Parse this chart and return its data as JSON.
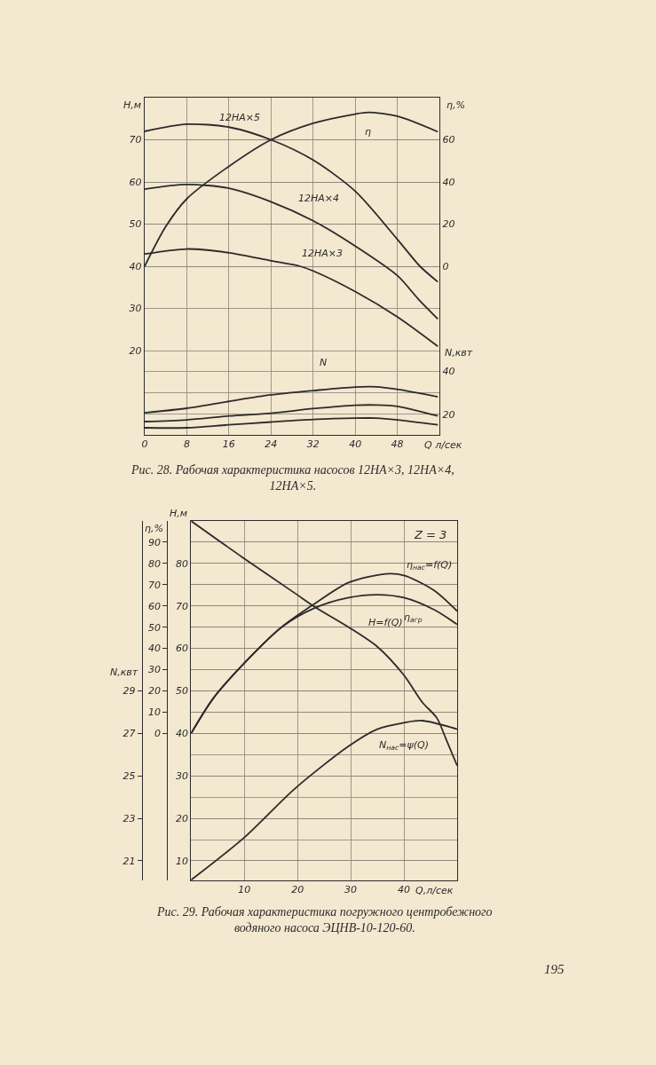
{
  "chart_data": [
    {
      "type": "line",
      "title": "Рис. 28. Рабочая характеристика насосов 12НА×3, 12НА×4, 12НА×5.",
      "xlabel": "Q л/сек",
      "ylabel": "H,м",
      "y2label": "η,%",
      "y3label": "N,квт",
      "xlim": [
        0,
        56
      ],
      "xticks": [
        0,
        8,
        16,
        24,
        32,
        40,
        48
      ],
      "ylim": [
        0,
        80
      ],
      "yticks": [
        20,
        30,
        40,
        50,
        60,
        70
      ],
      "y2lim": [
        -80,
        80
      ],
      "y2ticks": [
        0,
        20,
        40,
        60
      ],
      "y3lim": [
        10.4,
        167.4
      ],
      "y3ticks": [
        20,
        {
          "value": 30,
          "label": null
        },
        40
      ],
      "grid": true,
      "series": [
        {
          "name": "12НА×5",
          "color": "#2b2b2b",
          "x": [
            0,
            8,
            16,
            24,
            32,
            40,
            48,
            52.3,
            55.7
          ],
          "values": [
            72,
            73.7,
            73,
            70,
            65.2,
            57.8,
            46.4,
            40,
            36.3
          ]
        },
        {
          "name": "12НА×4",
          "color": "#2b2b2b",
          "x": [
            0,
            8,
            16,
            24,
            32,
            40,
            48,
            52,
            55.7
          ],
          "values": [
            58.3,
            59.4,
            58.5,
            55.3,
            50.8,
            44.8,
            37.8,
            32.2,
            27.5
          ]
        },
        {
          "name": "12НА×3",
          "color": "#2b2b2b",
          "x": [
            0,
            8,
            16,
            24,
            29.5,
            32,
            40,
            48,
            55.7
          ],
          "values": [
            42.9,
            44.1,
            43.2,
            41.3,
            40,
            38.9,
            34,
            28,
            21
          ]
        },
        {
          "name": "η",
          "color": "#2b2b2b",
          "axis": "y2",
          "x": [
            0,
            4,
            8,
            16,
            24,
            32,
            40,
            42.5,
            48,
            55.7
          ],
          "values": [
            0,
            18.8,
            32,
            47.4,
            60,
            67.8,
            72.2,
            73,
            71.2,
            63.8
          ]
        },
        {
          "color": "#2b2b2b",
          "axis": "y3",
          "x": [
            0,
            8,
            16,
            24,
            32,
            40,
            44,
            48,
            55.7
          ],
          "values": [
            20.7,
            22.8,
            26,
            29,
            31,
            32.7,
            32.8,
            31.6,
            28.1
          ]
        },
        {
          "color": "#2b2b2b",
          "axis": "y3",
          "x": [
            0,
            8,
            16,
            24,
            32,
            40,
            44,
            48,
            55.7
          ],
          "values": [
            16.6,
            17.4,
            19.2,
            20.5,
            22.6,
            24.2,
            24.3,
            23.7,
            19.2
          ]
        },
        {
          "color": "#2b2b2b",
          "axis": "y3",
          "x": [
            0,
            8,
            16,
            24,
            32,
            40,
            44,
            48,
            55.7
          ],
          "values": [
            13.7,
            13.7,
            15.1,
            16.4,
            17.6,
            18.2,
            18.2,
            17.4,
            15.1
          ]
        }
      ],
      "annotations": [
        "N"
      ]
    },
    {
      "type": "line",
      "title": "Рис. 29. Рабочая характеристика погружного центробежного водяного насоса ЭЦНВ-10-120-60.",
      "xlabel": "Q,л/сек",
      "ylabel": "H,м",
      "y2label": "η,%",
      "y3label": "N,квт",
      "xlim": [
        0,
        50
      ],
      "xticks": [
        10,
        20,
        30,
        40
      ],
      "ylim": [
        5.4,
        90
      ],
      "yticks": [
        10,
        {
          "value": 15,
          "label": null
        },
        20,
        {
          "value": 25,
          "label": null
        },
        30,
        {
          "value": 35,
          "label": null
        },
        40,
        {
          "value": 45,
          "label": null
        },
        50,
        {
          "value": 55,
          "label": null
        },
        60,
        {
          "value": 65,
          "label": null
        },
        70,
        {
          "value": 75,
          "label": null
        },
        80,
        {
          "value": 85,
          "label": null
        }
      ],
      "y2lim": [
        -69.2,
        100
      ],
      "y2ticks": [
        0,
        10,
        20,
        30,
        40,
        50,
        60,
        70,
        80,
        90
      ],
      "y3lim": [
        20.08,
        37
      ],
      "y3ticks": [
        21,
        23,
        25,
        27,
        29
      ],
      "grid": true,
      "series": [
        {
          "name": "H=f(Q)",
          "color": "#2b2b2b",
          "x": [
            0,
            9.7,
            19.5,
            23.2,
            29.6,
            35,
            40,
            43.4,
            46.2,
            47.9,
            50
          ],
          "values": [
            90,
            81.4,
            73,
            69.8,
            65,
            60.4,
            53.7,
            47.4,
            43.6,
            38.7,
            32.4
          ]
        },
        {
          "name": "η$_{нас}$=f(Q)",
          "color": "#2b2b2b",
          "axis": "y2",
          "x": [
            0,
            4.1,
            10,
            17,
            23.2,
            29.6,
            36.6,
            40,
            45.6,
            50
          ],
          "values": [
            0,
            16.3,
            33.1,
            50,
            61,
            71,
            75.1,
            74.4,
            67.4,
            57.6
          ]
        },
        {
          "name": "η$_{агр}$",
          "color": "#2b2b2b",
          "axis": "y2",
          "x": [
            0,
            4.1,
            10,
            17,
            23.2,
            29.6,
            35,
            40,
            45.6,
            50
          ],
          "values": [
            0,
            16.3,
            33.1,
            50,
            59,
            63.9,
            65.3,
            63.9,
            58.3,
            51.3
          ]
        },
        {
          "name": "N$_{нас}$=ψ(Q)",
          "color": "#2b2b2b",
          "axis": "y3",
          "x": [
            0,
            10,
            19.5,
            29.6,
            35,
            40,
            43.4,
            50
          ],
          "values": [
            20.1,
            22.1,
            24.4,
            26.4,
            27.2,
            27.5,
            27.6,
            27.2
          ]
        }
      ],
      "annotations": [
        "Z = 3",
        "195"
      ]
    }
  ]
}
